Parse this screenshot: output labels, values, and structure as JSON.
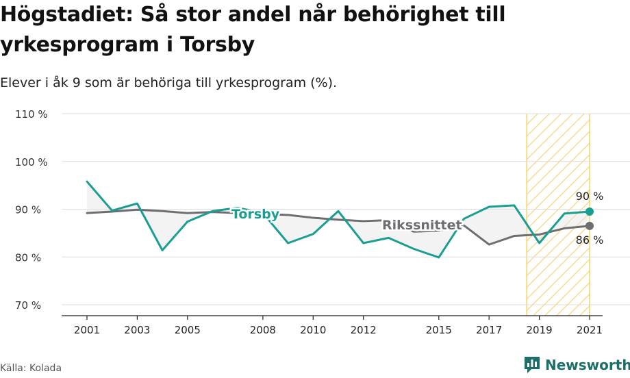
{
  "title": "Högstadiet: Så stor andel når behörighet till yrkesprogram i Torsby",
  "subtitle": "Elever i åk 9 som är behöriga till yrkesprogram (%).",
  "source": "Källa: Kolada",
  "brand": "Newsworthy",
  "colors": {
    "torsby": "#1a9e92",
    "riket": "#6d6d72",
    "highlight": "#f6c445",
    "grid": "#dcdcdc",
    "brand": "#1c6e68"
  },
  "chart_data": {
    "type": "line",
    "ylim": [
      70,
      110
    ],
    "y_ticks": [
      70,
      80,
      90,
      100,
      110
    ],
    "y_tick_labels": [
      "70 %",
      "80 %",
      "90 %",
      "100 %",
      "110 %"
    ],
    "x_range": [
      2001,
      2021
    ],
    "x_ticks": [
      2001,
      2003,
      2005,
      2008,
      2010,
      2012,
      2015,
      2017,
      2019,
      2021
    ],
    "x_tick_labels": [
      "2001",
      "2003",
      "2005",
      "2008",
      "2010",
      "2012",
      "2015",
      "2017",
      "2019",
      "2021"
    ],
    "highlight_range": [
      2018.5,
      2021
    ],
    "x": [
      2001,
      2002,
      2003,
      2004,
      2005,
      2006,
      2007,
      2008,
      2009,
      2010,
      2011,
      2012,
      2013,
      2014,
      2015,
      2016,
      2017,
      2018,
      2019,
      2020,
      2021
    ],
    "series": [
      {
        "name": "Torsby",
        "values": [
          95.8,
          89.7,
          91.2,
          81.4,
          87.4,
          89.6,
          90.3,
          89.2,
          82.9,
          84.8,
          89.6,
          82.9,
          84.0,
          81.7,
          79.9,
          88.0,
          90.5,
          90.8,
          82.9,
          89.1,
          89.5
        ],
        "end_label": "90 %"
      },
      {
        "name": "Rikssnittet",
        "values": [
          89.2,
          89.5,
          89.9,
          89.6,
          89.2,
          89.4,
          89.2,
          89.0,
          88.8,
          88.2,
          87.8,
          87.5,
          87.7,
          85.3,
          85.5,
          86.6,
          82.6,
          84.4,
          84.7,
          86.0,
          86.5
        ],
        "end_label": "86 %"
      }
    ]
  }
}
